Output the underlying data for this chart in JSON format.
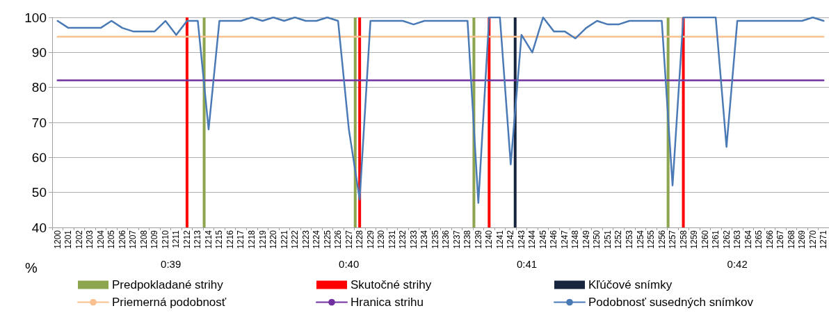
{
  "chart_data": {
    "type": "line",
    "ylabel": "%",
    "categories": [
      "1200",
      "1201",
      "1202",
      "1203",
      "1204",
      "1205",
      "1206",
      "1207",
      "1208",
      "1209",
      "1210",
      "1211",
      "1212",
      "1213",
      "1214",
      "1215",
      "1216",
      "1217",
      "1218",
      "1219",
      "1220",
      "1221",
      "1222",
      "1223",
      "1224",
      "1225",
      "1226",
      "1227",
      "1228",
      "1229",
      "1230",
      "1231",
      "1232",
      "1233",
      "1234",
      "1235",
      "1236",
      "1237",
      "1238",
      "1239",
      "1240",
      "1241",
      "1242",
      "1243",
      "1244",
      "1245",
      "1246",
      "1247",
      "1248",
      "1249",
      "1250",
      "1251",
      "1252",
      "1253",
      "1254",
      "1255",
      "1256",
      "1257",
      "1258",
      "1259",
      "1260",
      "1261",
      "1262",
      "1263",
      "1264",
      "1265",
      "1266",
      "1267",
      "1268",
      "1269",
      "1270",
      "1271"
    ],
    "series": [
      {
        "name": "Predpokladané strihy",
        "type": "bar",
        "color": "#8ca54e",
        "values": [
          null,
          null,
          null,
          null,
          null,
          null,
          null,
          null,
          null,
          null,
          null,
          null,
          null,
          null,
          100,
          null,
          null,
          null,
          null,
          null,
          null,
          null,
          null,
          null,
          null,
          null,
          null,
          null,
          100,
          null,
          null,
          null,
          null,
          null,
          null,
          null,
          null,
          null,
          null,
          100,
          null,
          null,
          null,
          null,
          null,
          null,
          null,
          null,
          null,
          null,
          null,
          null,
          null,
          null,
          null,
          null,
          null,
          100,
          null,
          null,
          null,
          null,
          null,
          null,
          null,
          null,
          null,
          null,
          null,
          null,
          null,
          null
        ]
      },
      {
        "name": "Skutočné strihy",
        "type": "bar",
        "color": "#ff0000",
        "values": [
          null,
          null,
          null,
          null,
          null,
          null,
          null,
          null,
          null,
          null,
          null,
          null,
          100,
          null,
          null,
          null,
          null,
          null,
          null,
          null,
          null,
          null,
          null,
          null,
          null,
          null,
          null,
          null,
          100,
          null,
          null,
          null,
          null,
          null,
          null,
          null,
          null,
          null,
          null,
          null,
          100,
          null,
          null,
          null,
          null,
          null,
          null,
          null,
          null,
          null,
          null,
          null,
          null,
          null,
          null,
          null,
          null,
          null,
          100,
          null,
          null,
          null,
          null,
          null,
          null,
          null,
          null,
          null,
          null,
          null,
          null,
          null
        ]
      },
      {
        "name": "Kľúčové snímky",
        "type": "bar",
        "color": "#17253f",
        "values": [
          null,
          null,
          null,
          null,
          null,
          null,
          null,
          null,
          null,
          null,
          null,
          null,
          null,
          null,
          null,
          null,
          null,
          null,
          null,
          null,
          null,
          null,
          null,
          null,
          null,
          null,
          null,
          null,
          null,
          null,
          null,
          null,
          null,
          null,
          null,
          null,
          null,
          null,
          null,
          null,
          null,
          null,
          100,
          null,
          null,
          null,
          null,
          null,
          null,
          null,
          null,
          null,
          null,
          null,
          null,
          null,
          null,
          null,
          null,
          null,
          null,
          null,
          null,
          null,
          null,
          null,
          null,
          null,
          null,
          null,
          null,
          null
        ]
      },
      {
        "name": "Priemerná podobnosť",
        "color": "#fac090",
        "values": [
          94.5,
          94.5,
          94.5,
          94.5,
          94.5,
          94.5,
          94.5,
          94.5,
          94.5,
          94.5,
          94.5,
          94.5,
          94.5,
          94.5,
          94.5,
          94.5,
          94.5,
          94.5,
          94.5,
          94.5,
          94.5,
          94.5,
          94.5,
          94.5,
          94.5,
          94.5,
          94.5,
          94.5,
          94.5,
          94.5,
          94.5,
          94.5,
          94.5,
          94.5,
          94.5,
          94.5,
          94.5,
          94.5,
          94.5,
          94.5,
          94.5,
          94.5,
          94.5,
          94.5,
          94.5,
          94.5,
          94.5,
          94.5,
          94.5,
          94.5,
          94.5,
          94.5,
          94.5,
          94.5,
          94.5,
          94.5,
          94.5,
          94.5,
          94.5,
          94.5,
          94.5,
          94.5,
          94.5,
          94.5,
          94.5,
          94.5,
          94.5,
          94.5,
          94.5,
          94.5,
          94.5,
          94.5
        ]
      },
      {
        "name": "Hranica strihu",
        "color": "#7030a0",
        "values": [
          82,
          82,
          82,
          82,
          82,
          82,
          82,
          82,
          82,
          82,
          82,
          82,
          82,
          82,
          82,
          82,
          82,
          82,
          82,
          82,
          82,
          82,
          82,
          82,
          82,
          82,
          82,
          82,
          82,
          82,
          82,
          82,
          82,
          82,
          82,
          82,
          82,
          82,
          82,
          82,
          82,
          82,
          82,
          82,
          82,
          82,
          82,
          82,
          82,
          82,
          82,
          82,
          82,
          82,
          82,
          82,
          82,
          82,
          82,
          82,
          82,
          82,
          82,
          82,
          82,
          82,
          82,
          82,
          82,
          82,
          82,
          82
        ]
      },
      {
        "name": "Podobnosť susedných snímkov",
        "color": "#4a7ab5",
        "values": [
          99,
          97,
          97,
          97,
          97,
          99,
          97,
          96,
          96,
          96,
          99,
          95,
          99,
          99,
          68,
          99,
          99,
          99,
          100,
          99,
          100,
          99,
          100,
          99,
          99,
          100,
          99,
          68,
          48,
          99,
          99,
          99,
          99,
          98,
          99,
          99,
          99,
          99,
          99,
          47,
          100,
          100,
          58,
          95,
          90,
          100,
          96,
          96,
          94,
          97,
          99,
          98,
          98,
          99,
          99,
          99,
          99,
          52,
          100,
          100,
          100,
          100,
          63,
          99,
          99,
          99,
          99,
          99,
          99,
          99,
          100,
          99
        ]
      }
    ],
    "ylim": [
      40,
      100
    ],
    "yticks": [
      40,
      50,
      60,
      70,
      80,
      90,
      100
    ],
    "grid": "y",
    "legend": "bottom",
    "marker": "none",
    "annotations": [
      "0:39",
      "0:40",
      "0:41",
      "0:42"
    ]
  }
}
